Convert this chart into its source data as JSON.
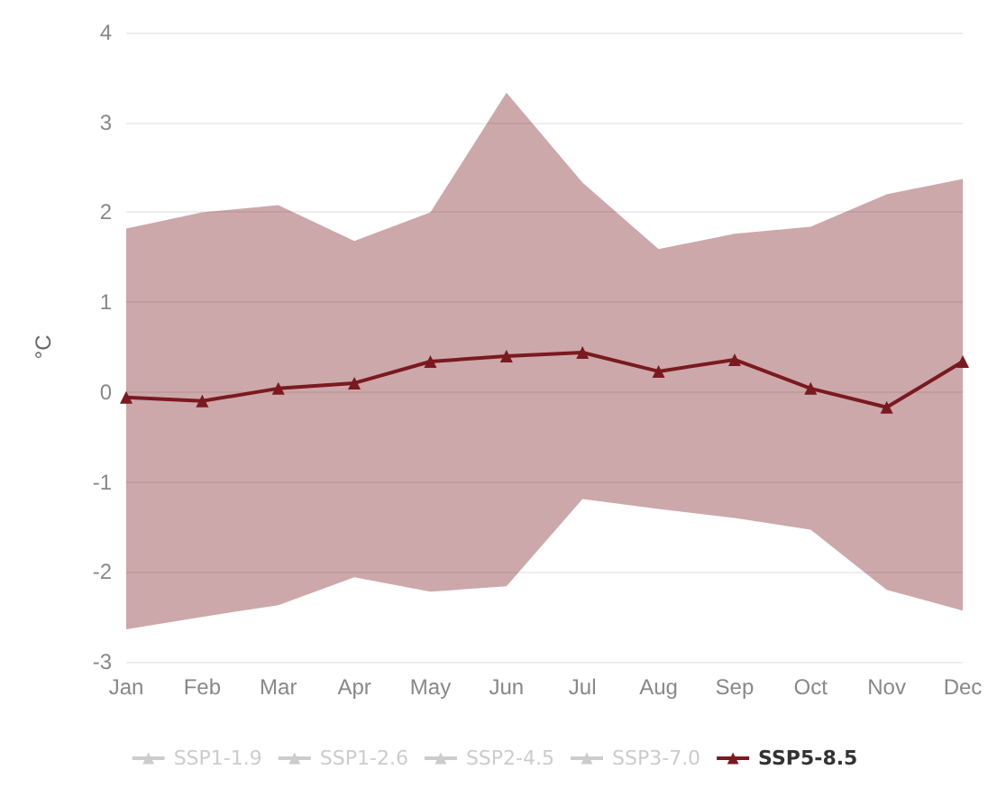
{
  "chart_data": {
    "type": "line",
    "ylabel": "°C",
    "categories": [
      "Jan",
      "Feb",
      "Mar",
      "Apr",
      "May",
      "Jun",
      "Jul",
      "Aug",
      "Sep",
      "Oct",
      "Nov",
      "Dec"
    ],
    "ylim": [
      -3,
      4
    ],
    "yticks": [
      -3,
      -2,
      -1,
      0,
      1,
      2,
      3,
      4
    ],
    "grid": "y",
    "legend": "bottom",
    "marker": "triangle",
    "series": [
      {
        "name": "SSP1-1.9",
        "color": "#cccccc",
        "values": [
          null,
          null,
          null,
          null,
          null,
          null,
          null,
          null,
          null,
          null,
          null,
          null
        ]
      },
      {
        "name": "SSP1-2.6",
        "color": "#cccccc",
        "values": [
          null,
          null,
          null,
          null,
          null,
          null,
          null,
          null,
          null,
          null,
          null,
          null
        ]
      },
      {
        "name": "SSP2-4.5",
        "color": "#cccccc",
        "values": [
          null,
          null,
          null,
          null,
          null,
          null,
          null,
          null,
          null,
          null,
          null,
          null
        ]
      },
      {
        "name": "SSP3-7.0",
        "color": "#cccccc",
        "values": [
          null,
          null,
          null,
          null,
          null,
          null,
          null,
          null,
          null,
          null,
          null,
          null
        ]
      },
      {
        "name": "SSP5-8.5",
        "color": "#7a1a1f",
        "values": [
          -0.06,
          -0.1,
          0.04,
          0.1,
          0.34,
          0.4,
          0.44,
          0.23,
          0.36,
          0.04,
          -0.17,
          0.34
        ],
        "lower": [
          -2.64,
          -2.5,
          -2.37,
          -2.06,
          -2.22,
          -2.16,
          -1.19,
          -1.3,
          -1.4,
          -1.53,
          -2.2,
          -2.43
        ],
        "upper": [
          1.82,
          2.0,
          2.08,
          1.68,
          2.0,
          3.33,
          2.33,
          1.59,
          1.76,
          1.84,
          2.2,
          2.37
        ]
      }
    ]
  }
}
